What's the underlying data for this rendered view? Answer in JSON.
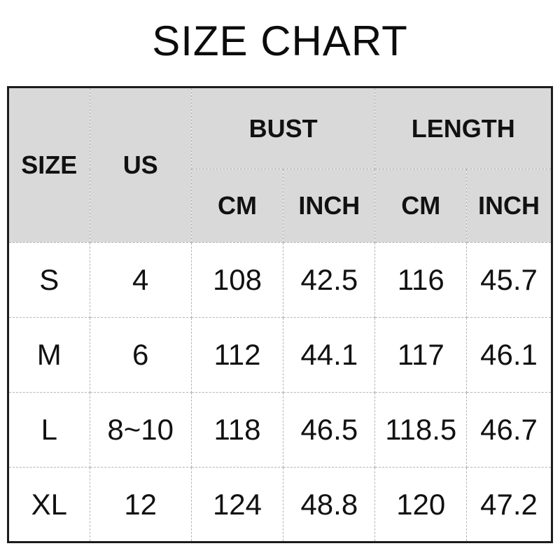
{
  "chart_data": {
    "type": "table",
    "title": "SIZE CHART",
    "header": {
      "size": "SIZE",
      "us": "US",
      "bust_group": "BUST",
      "length_group": "LENGTH",
      "bust_cm": "CM",
      "bust_inch": "INCH",
      "length_cm": "CM",
      "length_inch": "INCH"
    },
    "columns": [
      "SIZE",
      "US",
      "BUST CM",
      "BUST INCH",
      "LENGTH CM",
      "LENGTH INCH"
    ],
    "rows": [
      {
        "size": "S",
        "us": "4",
        "bust_cm": "108",
        "bust_inch": "42.5",
        "length_cm": "116",
        "length_inch": "45.7"
      },
      {
        "size": "M",
        "us": "6",
        "bust_cm": "112",
        "bust_inch": "44.1",
        "length_cm": "117",
        "length_inch": "46.1"
      },
      {
        "size": "L",
        "us": "8~10",
        "bust_cm": "118",
        "bust_inch": "46.5",
        "length_cm": "118.5",
        "length_inch": "46.7"
      },
      {
        "size": "XL",
        "us": "12",
        "bust_cm": "124",
        "bust_inch": "48.8",
        "length_cm": "120",
        "length_inch": "47.2"
      }
    ],
    "layout": {
      "header_bg": "#d9d9d9",
      "outer_border_color": "#1c1c1c",
      "inner_border_color": "#b5b5b5",
      "text_color": "#111111",
      "grid": "dashed-inner-solid-outer"
    }
  }
}
